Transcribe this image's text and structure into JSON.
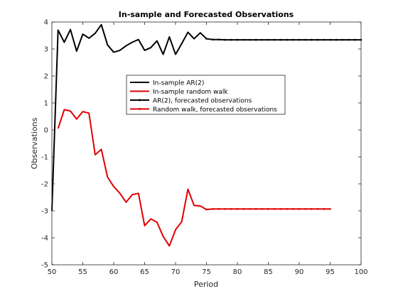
{
  "chart_data": {
    "type": "line",
    "title": "In-sample and Forecasted Observations",
    "xlabel": "Period",
    "ylabel": "Observations",
    "xlim": [
      50,
      100
    ],
    "ylim": [
      -5,
      4
    ],
    "xticks": [
      50,
      55,
      60,
      65,
      70,
      75,
      80,
      85,
      90,
      95,
      100
    ],
    "yticks": [
      -5,
      -4,
      -3,
      -2,
      -1,
      0,
      1,
      2,
      3,
      4
    ],
    "grid": false,
    "legend_position": "center",
    "series": [
      {
        "name": "In-sample AR(2)",
        "color": "#000000",
        "marker": "none",
        "x": [
          50,
          51,
          52,
          53,
          54,
          55,
          56,
          57,
          58,
          59,
          60,
          61,
          62,
          63,
          64,
          65,
          66,
          67,
          68,
          69,
          70,
          71,
          72,
          73,
          74,
          75
        ],
        "y": [
          -3.0,
          3.7,
          3.25,
          3.72,
          2.92,
          3.55,
          3.4,
          3.58,
          3.9,
          3.15,
          2.88,
          2.95,
          3.12,
          3.25,
          3.35,
          2.95,
          3.05,
          3.3,
          2.8,
          3.45,
          2.8,
          3.2,
          3.62,
          3.38,
          3.6,
          3.38
        ]
      },
      {
        "name": "In-sample random walk",
        "color": "#e00000",
        "marker": "none",
        "x": [
          51,
          52,
          53,
          54,
          55,
          56,
          57,
          58,
          59,
          60,
          61,
          62,
          63,
          64,
          65,
          66,
          67,
          68,
          69,
          70,
          71,
          72,
          73,
          74,
          75
        ],
        "y": [
          0.05,
          0.75,
          0.7,
          0.4,
          0.68,
          0.62,
          -0.92,
          -0.72,
          -1.75,
          -2.1,
          -2.35,
          -2.68,
          -2.4,
          -2.35,
          -3.55,
          -3.3,
          -3.42,
          -3.95,
          -4.3,
          -3.7,
          -3.4,
          -2.2,
          -2.8,
          -2.82,
          -2.95
        ]
      },
      {
        "name": "AR(2), forecasted observations",
        "color": "#000000",
        "marker": "point",
        "x": [
          75,
          76,
          77,
          78,
          79,
          80,
          81,
          82,
          83,
          84,
          85,
          86,
          87,
          88,
          89,
          90,
          91,
          92,
          93,
          94,
          95,
          96,
          97,
          98,
          99,
          100
        ],
        "y": [
          3.38,
          3.35,
          3.35,
          3.34,
          3.34,
          3.34,
          3.34,
          3.34,
          3.34,
          3.34,
          3.34,
          3.34,
          3.34,
          3.34,
          3.34,
          3.34,
          3.34,
          3.34,
          3.34,
          3.34,
          3.34,
          3.34,
          3.34,
          3.34,
          3.34,
          3.34
        ]
      },
      {
        "name": "Random walk, forecasted observations",
        "color": "#e00000",
        "marker": "point",
        "x": [
          75,
          76,
          77,
          78,
          79,
          80,
          81,
          82,
          83,
          84,
          85,
          86,
          87,
          88,
          89,
          90,
          91,
          92,
          93,
          94,
          95
        ],
        "y": [
          -2.95,
          -2.93,
          -2.93,
          -2.93,
          -2.93,
          -2.93,
          -2.93,
          -2.93,
          -2.93,
          -2.93,
          -2.93,
          -2.93,
          -2.93,
          -2.93,
          -2.93,
          -2.93,
          -2.93,
          -2.93,
          -2.93,
          -2.93,
          -2.93
        ]
      }
    ]
  }
}
